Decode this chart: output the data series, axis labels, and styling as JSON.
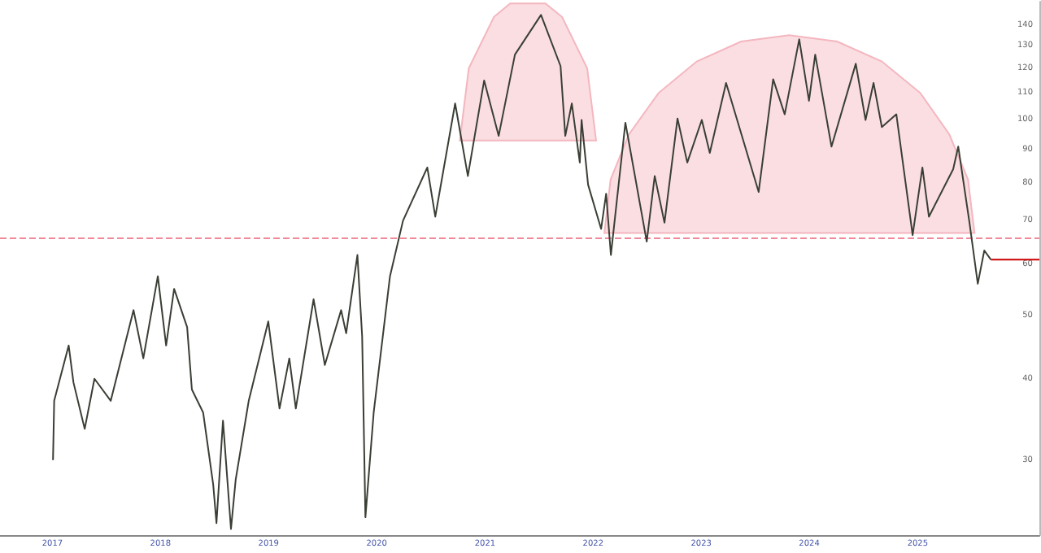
{
  "chart_data": {
    "type": "line",
    "log": "y",
    "grid": false,
    "marker": "none",
    "xlim": [
      "2016-07-08",
      "2026-02-16"
    ],
    "ylim": [
      23,
      152
    ],
    "xticks": [
      "2017",
      "2018",
      "2019",
      "2020",
      "2021",
      "2022",
      "2023",
      "2024",
      "2025"
    ],
    "yticks": [
      30,
      40,
      50,
      60,
      70,
      80,
      90,
      100,
      110,
      120,
      130,
      140
    ],
    "series": [
      {
        "type": "area",
        "color": "#f4b6bf",
        "x": [
          "2020-10-08",
          "2020-11-07",
          "2021-01-31",
          "2021-03-27",
          "2021-07-24",
          "2021-09-18",
          "2021-12-12",
          "2022-01-11"
        ],
        "values": [
          93,
          120,
          144,
          151,
          151,
          144,
          120,
          93
        ]
      },
      {
        "type": "area",
        "color": "#f4b6bf",
        "x": [
          "2022-02-08",
          "2022-03-01",
          "2022-05-02",
          "2022-08-10",
          "2022-12-17",
          "2023-05-16",
          "2023-10-25",
          "2024-04-04",
          "2024-09-02",
          "2025-01-10",
          "2025-04-18",
          "2025-06-20",
          "2025-07-12"
        ],
        "values": [
          67,
          81,
          95,
          110,
          123,
          132,
          135,
          132,
          123,
          110,
          95,
          81,
          67
        ]
      },
      {
        "color": "#3a3f35",
        "x": [
          "2017-01-03",
          "2017-01-07",
          "2017-02-25",
          "2017-03-13",
          "2017-04-20",
          "2017-05-23",
          "2017-07-17",
          "2017-10-02",
          "2017-11-04",
          "2017-12-23",
          "2018-01-20",
          "2018-02-16",
          "2018-04-01",
          "2018-04-17",
          "2018-05-25",
          "2018-06-28",
          "2018-07-09",
          "2018-07-31",
          "2018-08-27",
          "2018-09-12",
          "2018-10-26",
          "2018-12-31",
          "2019-02-07",
          "2019-03-12",
          "2019-04-03",
          "2019-06-02",
          "2019-07-10",
          "2019-09-03",
          "2019-09-20",
          "2019-10-28",
          "2019-11-13",
          "2019-11-24",
          "2019-12-22",
          "2020-02-15",
          "2020-03-30",
          "2020-06-20",
          "2020-07-17",
          "2020-09-22",
          "2020-11-04",
          "2020-12-29",
          "2021-02-16",
          "2021-04-12",
          "2021-07-09",
          "2021-09-13",
          "2021-09-29",
          "2021-10-21",
          "2021-11-17",
          "2021-11-23",
          "2021-12-15",
          "2022-01-28",
          "2022-02-14",
          "2022-03-02",
          "2022-04-20",
          "2022-07-01",
          "2022-07-28",
          "2022-08-30",
          "2022-10-13",
          "2022-11-15",
          "2023-01-03",
          "2023-01-30",
          "2023-03-26",
          "2023-07-14",
          "2023-09-01",
          "2023-10-10",
          "2023-11-28",
          "2023-12-31",
          "2024-01-21",
          "2024-03-16",
          "2024-06-06",
          "2024-07-09",
          "2024-08-05",
          "2024-09-02",
          "2024-10-21",
          "2024-12-15",
          "2025-01-17",
          "2025-02-08",
          "2025-05-01",
          "2025-05-18",
          "2025-06-25",
          "2025-07-23",
          "2025-08-14",
          "2025-09-05"
        ],
        "values": [
          30,
          37,
          45,
          39.5,
          33.5,
          40,
          37,
          51,
          43,
          57.5,
          45,
          55,
          48,
          38.5,
          35.5,
          27.5,
          24,
          34.5,
          23.5,
          28,
          37,
          49,
          36,
          43,
          36,
          53,
          42,
          51,
          47,
          62,
          46.5,
          24.5,
          35.5,
          57.5,
          70,
          84.5,
          71,
          106,
          82,
          115,
          94.5,
          126,
          145,
          121,
          94.5,
          106,
          86,
          100,
          79.5,
          68,
          77,
          62,
          99,
          65,
          82,
          69.5,
          100.5,
          86,
          100,
          89,
          114,
          77.5,
          115.5,
          102,
          133,
          107,
          126,
          91,
          122,
          100,
          114,
          97.5,
          102,
          66.5,
          84.5,
          71,
          84,
          91,
          69.5,
          56,
          63,
          61
        ]
      },
      {
        "type": "line",
        "color": "#cc0000",
        "x": [
          "2025-09-05",
          "2026-02-16"
        ],
        "values": [
          61,
          61
        ]
      }
    ],
    "ref_lines": [
      {
        "axis": "y",
        "value": 66,
        "color": "#f08a9a",
        "line_style": "dashed"
      }
    ]
  }
}
